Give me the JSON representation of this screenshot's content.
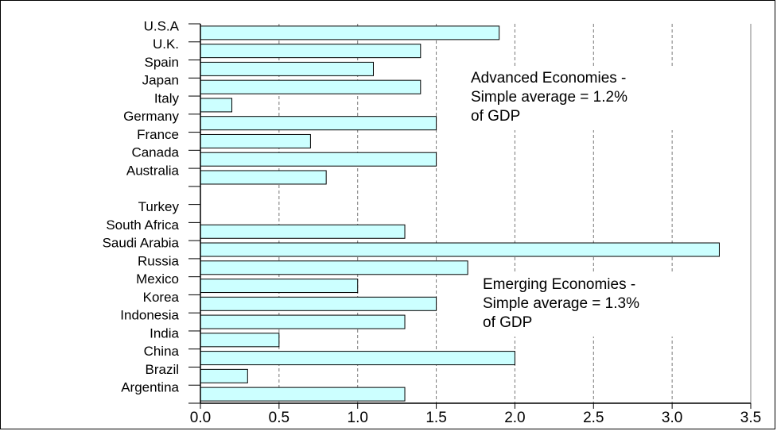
{
  "chart_data": {
    "type": "bar",
    "orientation": "horizontal",
    "title": "",
    "xlabel": "",
    "ylabel": "",
    "xlim": [
      0,
      3.5
    ],
    "x_ticks": [
      "0.0",
      "0.5",
      "1.0",
      "1.5",
      "2.0",
      "2.5",
      "3.0",
      "3.5"
    ],
    "grid": "vertical dashed at major ticks",
    "bar_color": "#ccffff",
    "bar_edge_color": "#000000",
    "categories": [
      "U.S.A",
      "U.K.",
      "Spain",
      "Japan",
      "Italy",
      "Germany",
      "France",
      "Canada",
      "Australia",
      "",
      "Turkey",
      "South Africa",
      "Saudi Arabia",
      "Russia",
      "Mexico",
      "Korea",
      "Indonesia",
      "India",
      "China",
      "Brazil",
      "Argentina"
    ],
    "values": [
      1.9,
      1.4,
      1.1,
      1.4,
      0.2,
      1.5,
      0.7,
      1.5,
      0.8,
      null,
      0.0,
      1.3,
      3.3,
      1.7,
      1.0,
      1.5,
      1.3,
      0.5,
      2.0,
      0.3,
      1.3
    ],
    "annotations": [
      {
        "lines": [
          "Advanced Economies -",
          "Simple average = 1.2%",
          "of GDP"
        ]
      },
      {
        "lines": [
          "Emerging Economies -",
          "Simple average = 1.3%",
          "of GDP"
        ]
      }
    ]
  }
}
